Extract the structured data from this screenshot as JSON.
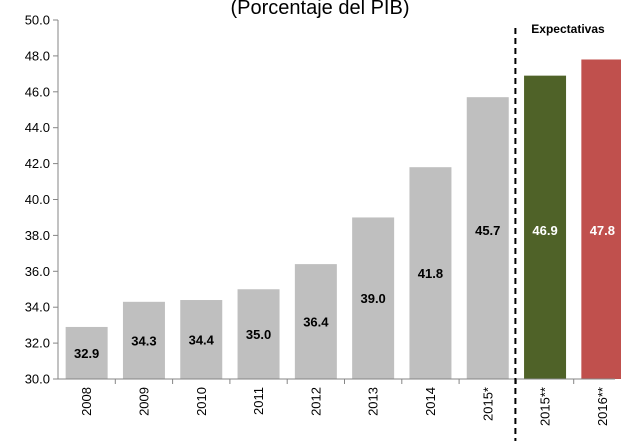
{
  "chart_data": {
    "type": "bar",
    "title": "(Porcentaje del PIB)",
    "annotation": "Expectativas",
    "categories": [
      "2008",
      "2009",
      "2010",
      "2011",
      "2012",
      "2013",
      "2014",
      "2015*",
      "2015**",
      "2016**"
    ],
    "values": [
      32.9,
      34.3,
      34.4,
      35.0,
      36.4,
      39.0,
      41.8,
      45.7,
      46.9,
      47.8
    ],
    "value_labels": [
      "32.9",
      "34.3",
      "34.4",
      "35.0",
      "36.4",
      "39.0",
      "41.8",
      "45.7",
      "46.9",
      "47.8"
    ],
    "y_ticks": [
      "30.0",
      "32.0",
      "34.0",
      "36.0",
      "38.0",
      "40.0",
      "42.0",
      "44.0",
      "46.0",
      "48.0",
      "50.0"
    ],
    "ylim": [
      30,
      50
    ],
    "bar_colors": [
      "#bfbfbf",
      "#bfbfbf",
      "#bfbfbf",
      "#bfbfbf",
      "#bfbfbf",
      "#bfbfbf",
      "#bfbfbf",
      "#bfbfbf",
      "#4f6228",
      "#c0504d"
    ],
    "label_colors": [
      "#000000",
      "#000000",
      "#000000",
      "#000000",
      "#000000",
      "#000000",
      "#000000",
      "#000000",
      "#ffffff",
      "#ffffff"
    ],
    "grid": false,
    "legend": "none"
  }
}
